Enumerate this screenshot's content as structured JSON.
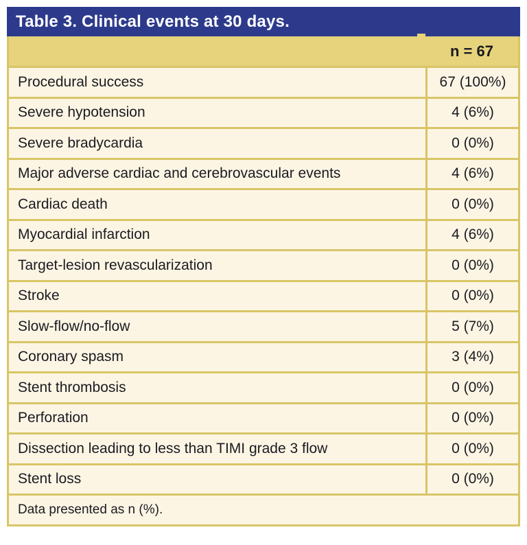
{
  "table": {
    "title": "Table 3. Clinical events at 30 days.",
    "header": {
      "value_column": "n = 67"
    },
    "rows": [
      {
        "label": "Procedural success",
        "value": "67 (100%)"
      },
      {
        "label": "Severe hypotension",
        "value": "4 (6%)"
      },
      {
        "label": "Severe bradycardia",
        "value": "0 (0%)"
      },
      {
        "label": "Major adverse cardiac and cerebrovascular events",
        "value": "4 (6%)"
      },
      {
        "label": "Cardiac death",
        "value": "0 (0%)"
      },
      {
        "label": "Myocardial infarction",
        "value": "4 (6%)"
      },
      {
        "label": "Target-lesion revascularization",
        "value": "0 (0%)"
      },
      {
        "label": "Stroke",
        "value": "0 (0%)"
      },
      {
        "label": "Slow-flow/no-flow",
        "value": "5 (7%)"
      },
      {
        "label": "Coronary spasm",
        "value": "3 (4%)"
      },
      {
        "label": "Stent thrombosis",
        "value": "0 (0%)"
      },
      {
        "label": "Perforation",
        "value": "0 (0%)"
      },
      {
        "label": "Dissection leading to less than TIMI grade 3 flow",
        "value": "0 (0%)"
      },
      {
        "label": "Stent loss",
        "value": "0 (0%)"
      }
    ],
    "footnote": "Data presented as n (%).",
    "colors": {
      "title_bg": "#2d3a8c",
      "title_text": "#ffffff",
      "band_bg": "#e6d37c",
      "row_bg": "#fdf5e4",
      "border": "#d8c566",
      "body_text": "#1a1a20"
    }
  }
}
